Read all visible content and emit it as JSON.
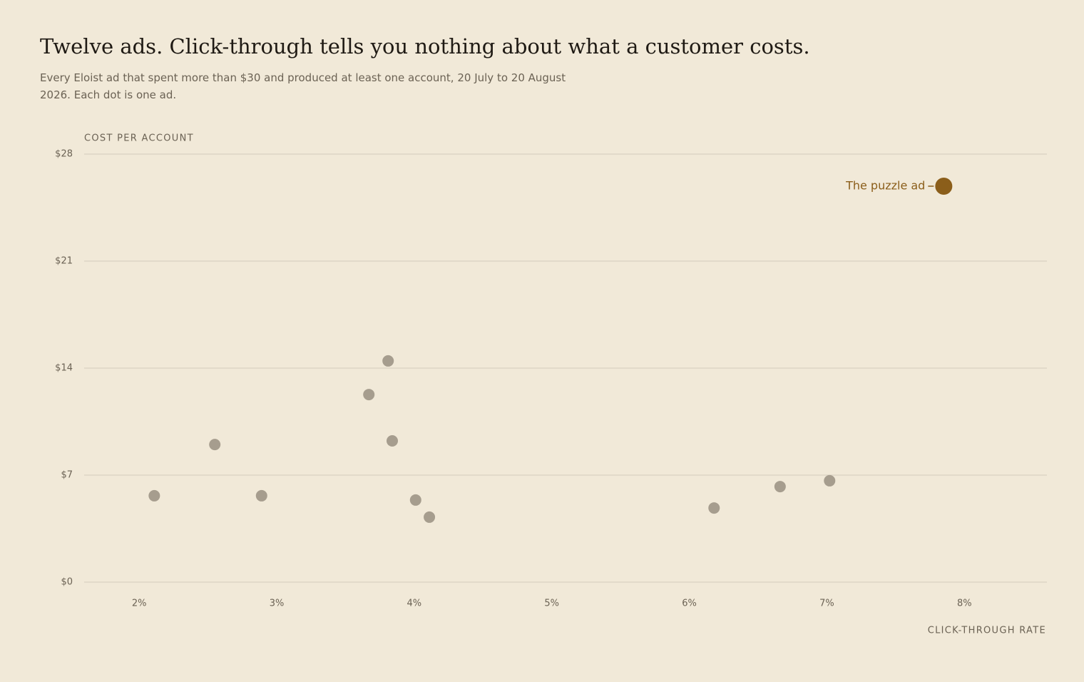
{
  "chart_data": {
    "type": "scatter",
    "title": "Twelve ads. Click-through tells you nothing about what a customer costs.",
    "subtitle": "Every Eloist ad that spent more than $30 and produced at least one account, 20 July to 20 August 2026. Each dot is one ad.",
    "y_label": "COST PER ACCOUNT",
    "x_label": "CLICK-THROUGH RATE",
    "xlim": [
      1.6,
      8.6
    ],
    "ylim": [
      0,
      28
    ],
    "xticks": [
      {
        "value": 2,
        "label": "2%"
      },
      {
        "value": 3,
        "label": "3%"
      },
      {
        "value": 4,
        "label": "4%"
      },
      {
        "value": 5,
        "label": "5%"
      },
      {
        "value": 6,
        "label": "6%"
      },
      {
        "value": 7,
        "label": "7%"
      },
      {
        "value": 8,
        "label": "8%"
      }
    ],
    "yticks": [
      {
        "value": 0,
        "label": "$0"
      },
      {
        "value": 7,
        "label": "$7"
      },
      {
        "value": 14,
        "label": "$14"
      },
      {
        "value": 21,
        "label": "$21"
      },
      {
        "value": 28,
        "label": "$28"
      }
    ],
    "grid": true,
    "series": [
      {
        "color": "#a69d8e",
        "x": [
          2.11,
          2.55,
          2.89,
          3.67,
          3.81,
          3.84,
          4.01,
          4.11,
          6.18,
          6.66,
          7.02
        ],
        "y": [
          5.65,
          9.0,
          5.65,
          12.27,
          14.47,
          9.24,
          5.37,
          4.25,
          4.85,
          6.25,
          6.63
        ]
      },
      {
        "name": "The puzzle ad",
        "color": "#8b5e1a",
        "x": [
          7.85
        ],
        "y": [
          25.9
        ]
      }
    ]
  }
}
